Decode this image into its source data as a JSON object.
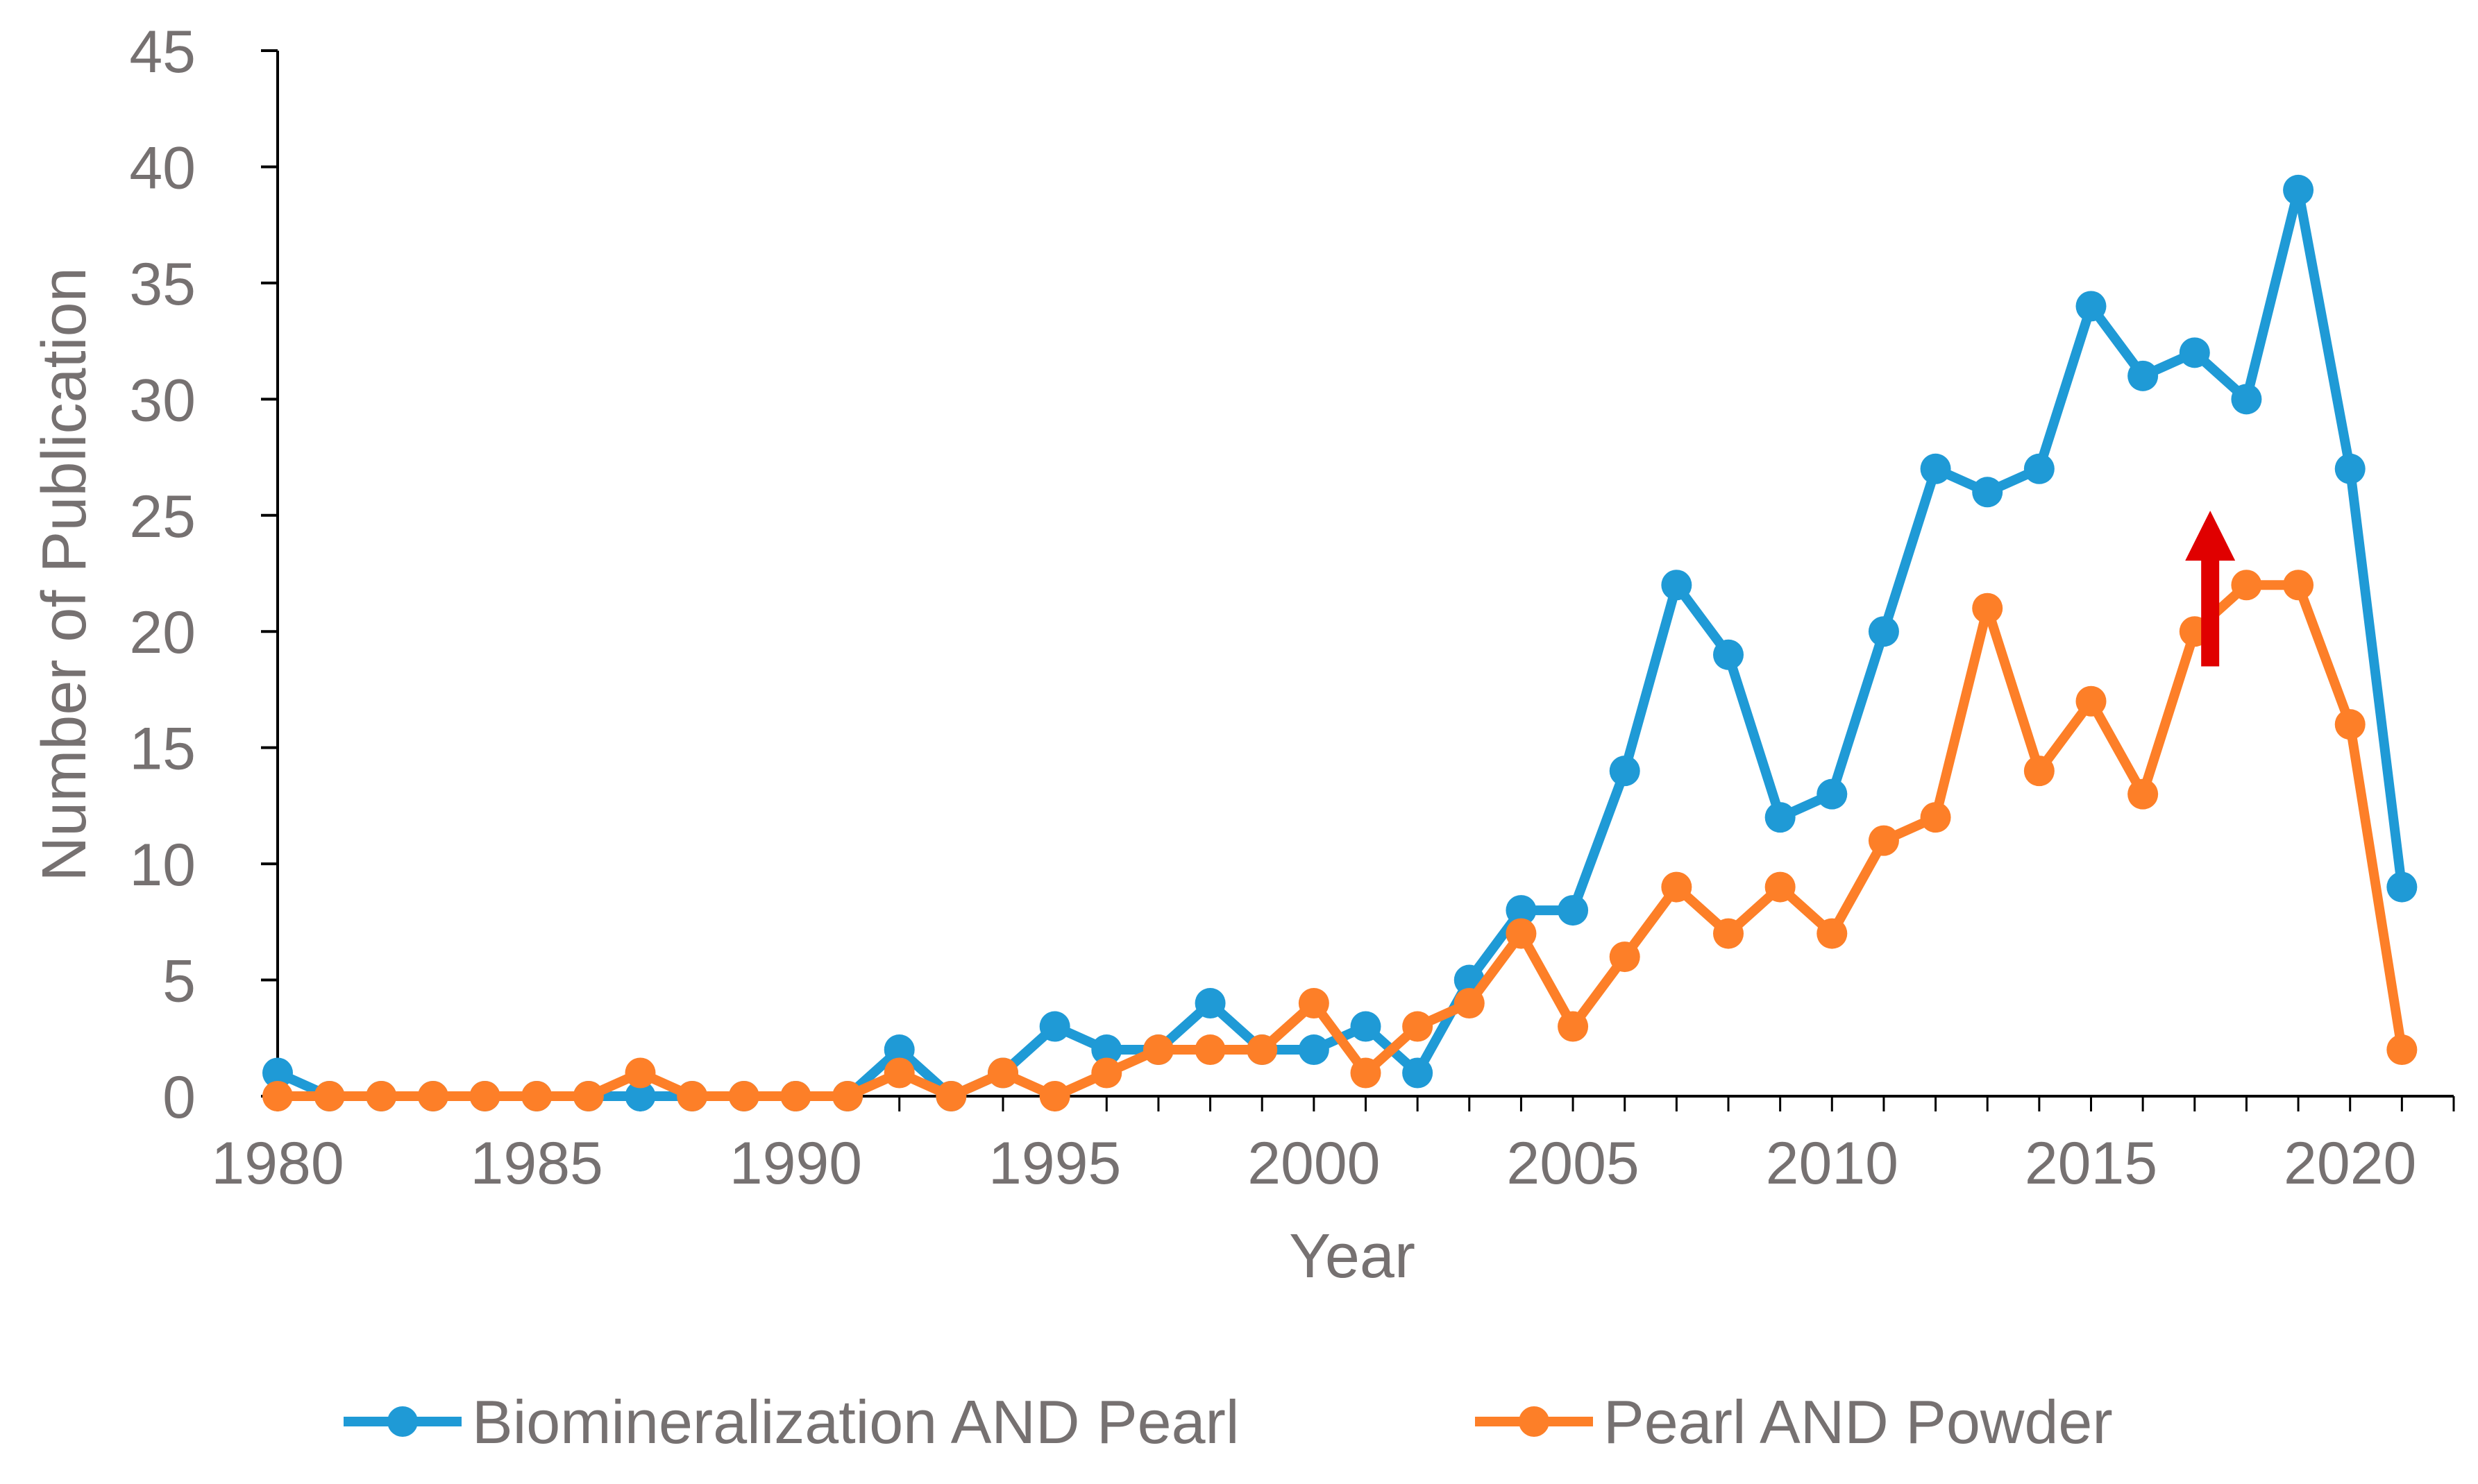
{
  "chart_data": {
    "type": "line",
    "title": "",
    "xlabel": "Year",
    "ylabel": "Number of Publication",
    "xlim": [
      1980,
      2022
    ],
    "ylim": [
      0,
      45
    ],
    "y_ticks": [
      "0",
      "5",
      "10",
      "15",
      "20",
      "25",
      "30",
      "35",
      "40",
      "45"
    ],
    "x_ticks": [
      "1980",
      "1985",
      "1990",
      "1995",
      "2000",
      "2005",
      "2010",
      "2015",
      "2020"
    ],
    "legend_position": "bottom",
    "grid": false,
    "x": [
      1980,
      1981,
      1982,
      1983,
      1984,
      1985,
      1986,
      1987,
      1988,
      1989,
      1990,
      1991,
      1992,
      1993,
      1994,
      1995,
      1996,
      1997,
      1998,
      1999,
      2000,
      2001,
      2002,
      2003,
      2004,
      2005,
      2006,
      2007,
      2008,
      2009,
      2010,
      2011,
      2012,
      2013,
      2014,
      2015,
      2016,
      2017,
      2018,
      2019,
      2020,
      2021
    ],
    "series": [
      {
        "name": "Biomineralization AND Pearl",
        "color": "#1f9ad6",
        "values": [
          1,
          0,
          0,
          0,
          0,
          0,
          0,
          0,
          0,
          0,
          0,
          0,
          2,
          0,
          1,
          3,
          2,
          2,
          4,
          2,
          2,
          3,
          1,
          5,
          8,
          8,
          14,
          22,
          19,
          12,
          13,
          20,
          27,
          26,
          27,
          34,
          31,
          32,
          30,
          39,
          27,
          9
        ]
      },
      {
        "name": "Pearl AND Powder",
        "color": "#fd7f28",
        "values": [
          0,
          0,
          0,
          0,
          0,
          0,
          0,
          1,
          0,
          0,
          0,
          0,
          1,
          0,
          1,
          0,
          1,
          2,
          2,
          2,
          4,
          1,
          3,
          4,
          7,
          3,
          6,
          9,
          7,
          9,
          7,
          11,
          12,
          21,
          14,
          17,
          13,
          20,
          22,
          22,
          16,
          2
        ]
      }
    ],
    "annotations": [
      {
        "type": "arrow",
        "direction": "up",
        "color": "#e00000",
        "x": 2017.3,
        "y_from": 18.5,
        "y_to": 25.2
      }
    ]
  },
  "colors": {
    "axis": "#000000",
    "text": "#767171"
  }
}
